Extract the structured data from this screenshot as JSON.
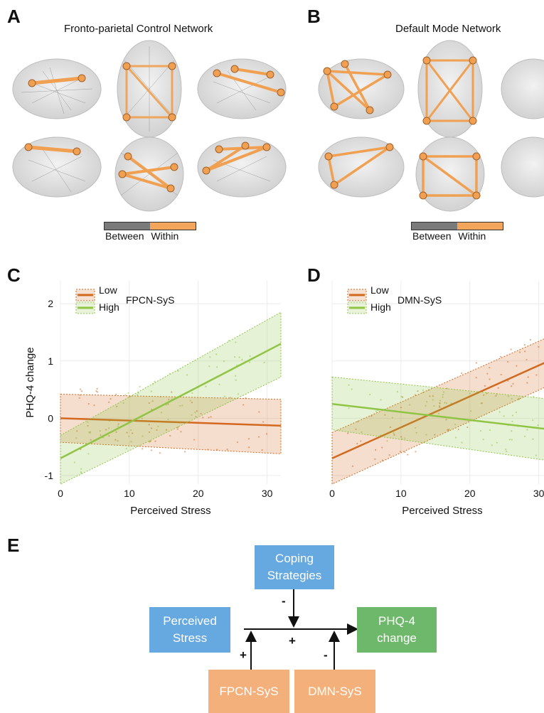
{
  "panels": {
    "A": {
      "letter": "A",
      "title": "Fronto-parietal Control Network"
    },
    "B": {
      "letter": "B",
      "title": "Default Mode Network"
    },
    "C": {
      "letter": "C"
    },
    "D": {
      "letter": "D"
    },
    "E": {
      "letter": "E"
    }
  },
  "connectivity_legend": {
    "between_label": "Between",
    "within_label": "Within",
    "between_color": "#7a7a7a",
    "within_color": "#f4a55c"
  },
  "colors": {
    "low": "#d2691e",
    "high": "#8fc444",
    "node_orange": "#f4b07a",
    "node_blue": "#66a8e0",
    "node_green": "#6db86a",
    "brain_node": "#f0a050"
  },
  "chart_data": [
    {
      "type": "line",
      "panel": "C",
      "title": "",
      "xlabel": "Perceived Stress",
      "ylabel": "PHQ-4 change",
      "xlim": [
        0,
        32
      ],
      "ylim": [
        -1.15,
        2.4
      ],
      "xticks": [
        "0",
        "10",
        "20",
        "30"
      ],
      "yticks": [
        "-1",
        "0",
        "1",
        "2"
      ],
      "grid": true,
      "legend": {
        "title": "FPCN-SyS",
        "placement": "top-left",
        "entries": [
          "Low",
          "High"
        ]
      },
      "series": [
        {
          "name": "Low",
          "x": [
            0,
            32
          ],
          "y": [
            0.0,
            -0.13
          ],
          "ci_upper": [
            0.42,
            0.33
          ],
          "ci_lower": [
            -0.42,
            -0.62
          ]
        },
        {
          "name": "High",
          "x": [
            0,
            32
          ],
          "y": [
            -0.7,
            1.3
          ],
          "ci_upper": [
            -0.3,
            1.85
          ],
          "ci_lower": [
            -1.15,
            0.72
          ]
        }
      ]
    },
    {
      "type": "line",
      "panel": "D",
      "title": "",
      "xlabel": "Perceived Stress",
      "ylabel": "",
      "xlim": [
        0,
        32
      ],
      "ylim": [
        -1.15,
        2.4
      ],
      "xticks": [
        "0",
        "10",
        "20",
        "30"
      ],
      "yticks": [],
      "grid": true,
      "legend": {
        "title": "DMN-SyS",
        "placement": "top-left",
        "entries": [
          "Low",
          "High"
        ]
      },
      "series": [
        {
          "name": "Low",
          "x": [
            0,
            32
          ],
          "y": [
            -0.7,
            1.03
          ],
          "ci_upper": [
            -0.25,
            1.45
          ],
          "ci_lower": [
            -1.15,
            0.6
          ]
        },
        {
          "name": "High",
          "x": [
            0,
            32
          ],
          "y": [
            0.25,
            -0.2
          ],
          "ci_upper": [
            0.72,
            0.33
          ],
          "ci_lower": [
            -0.2,
            -0.75
          ]
        }
      ]
    }
  ],
  "diagram": {
    "coping": "Coping\nStrategies",
    "perceived_stress": "Perceived\nStress",
    "phq4": "PHQ-4\nchange",
    "fpcn": "FPCN-SyS",
    "dmn": "DMN-SyS",
    "sign_coping": "-",
    "sign_main": "+",
    "sign_fpcn": "+",
    "sign_dmn": "-"
  }
}
